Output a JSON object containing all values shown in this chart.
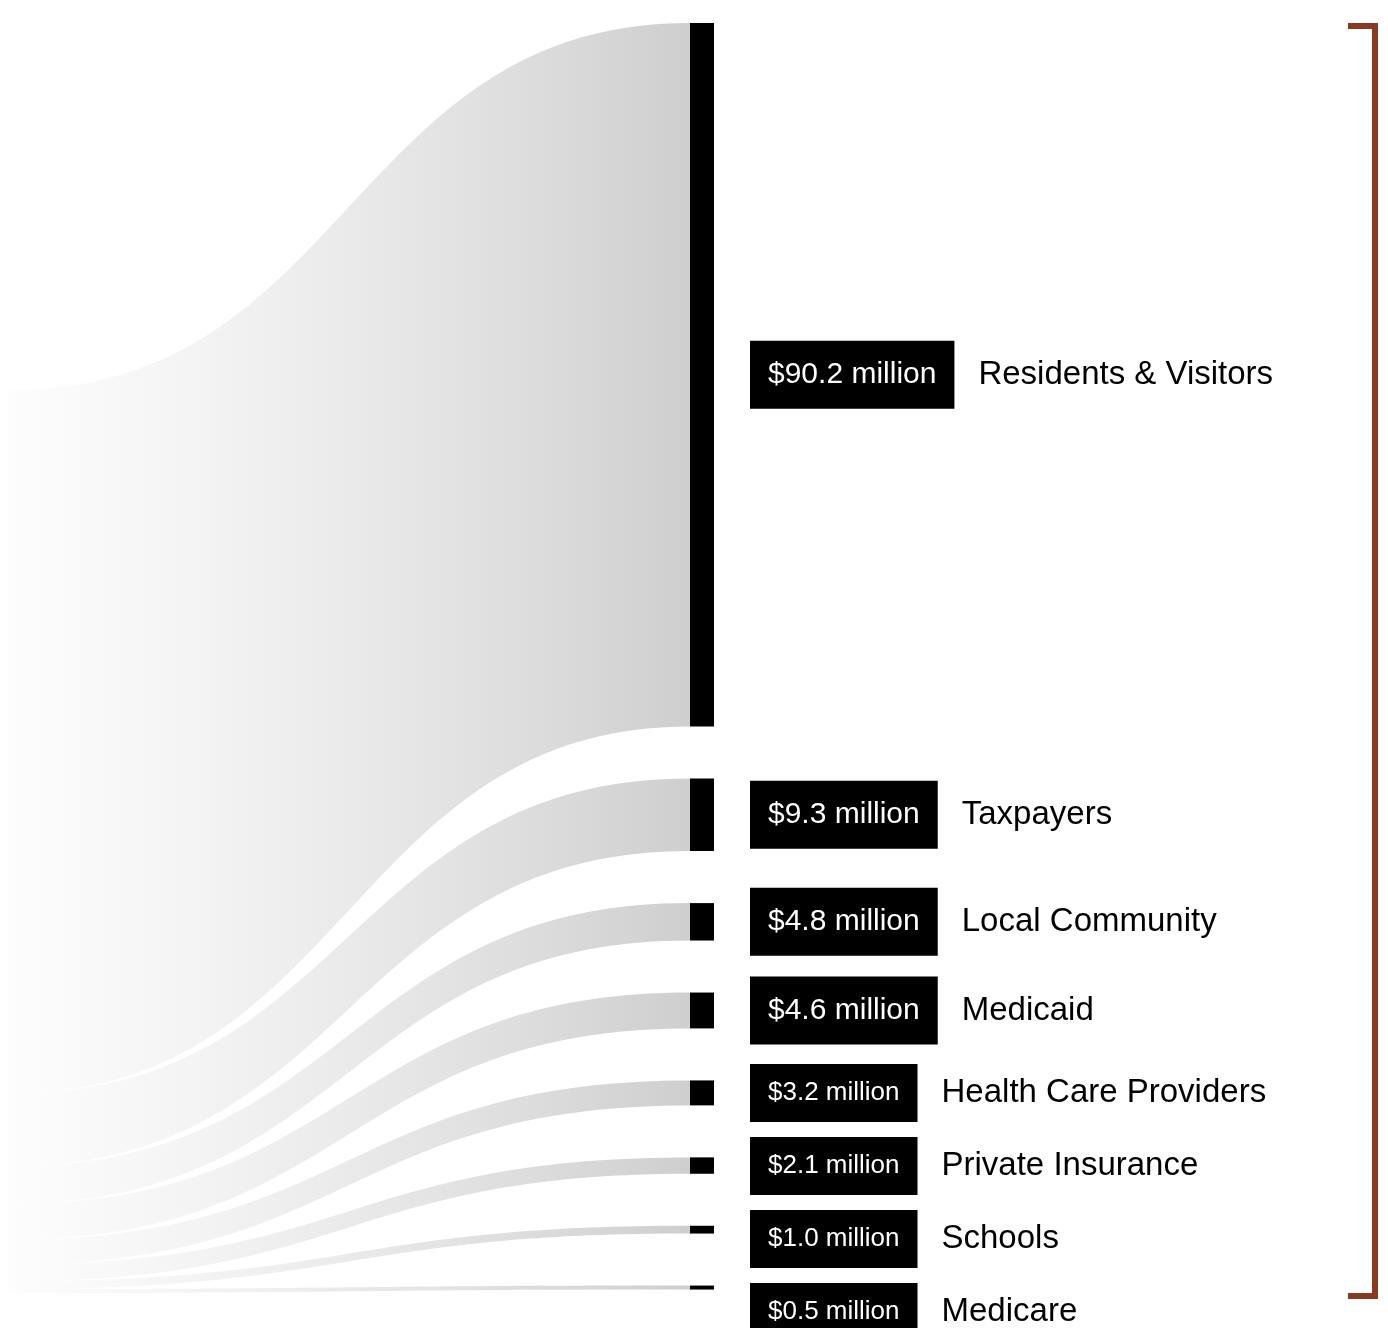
{
  "chart_data": {
    "type": "other",
    "categories": [
      "Residents & Visitors",
      "Taxpayers",
      "Local Community",
      "Medicaid",
      "Health Care Providers",
      "Private Insurance",
      "Schools",
      "Medicare"
    ],
    "values": [
      90.2,
      9.3,
      4.8,
      4.6,
      3.2,
      2.1,
      1.0,
      0.5
    ],
    "value_labels": [
      "$90.2 million",
      "$9.3 million",
      "$4.8 million",
      "$4.6 million",
      "$3.2 million",
      "$2.1 million",
      "$1.0 million",
      "$0.5 million"
    ],
    "color": "#000000"
  }
}
